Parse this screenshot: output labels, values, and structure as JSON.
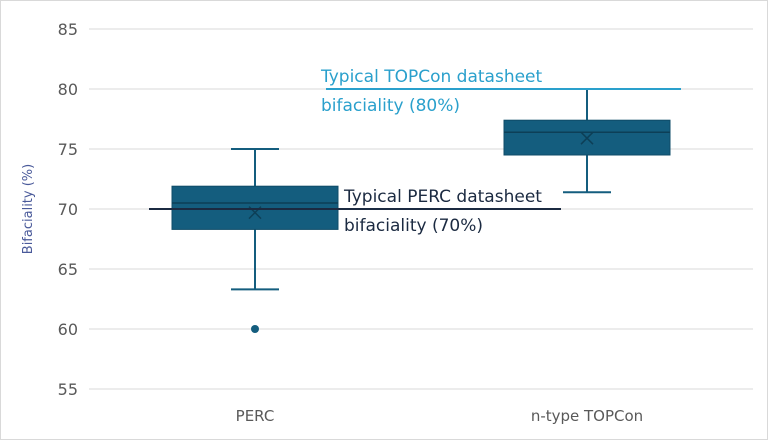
{
  "chart_data": {
    "type": "box",
    "title": "",
    "xlabel": "",
    "ylabel": "Bifaciality (%)",
    "ylim": [
      55,
      85
    ],
    "yticks": [
      55,
      60,
      65,
      70,
      75,
      80,
      85
    ],
    "grid": true,
    "categories": [
      "PERC",
      "n-type TOPCon"
    ],
    "series": [
      {
        "category": "PERC",
        "whisker_low": 63.3,
        "q1": 68.3,
        "median": 70.5,
        "mean": 69.7,
        "q3": 71.9,
        "whisker_high": 75,
        "outliers": [
          60
        ]
      },
      {
        "category": "n-type TOPCon",
        "whisker_low": 71.4,
        "q1": 74.5,
        "median": 76.4,
        "mean": 75.9,
        "q3": 77.4,
        "whisker_high": 80,
        "outliers": []
      }
    ],
    "reference_lines": [
      {
        "value": 70,
        "label_line1": "Typical PERC datasheet",
        "label_line2": "bifaciality (70%)",
        "color": "#1b2a41"
      },
      {
        "value": 80,
        "label_line1": "Typical TOPCon datasheet",
        "label_line2": "bifaciality (80%)",
        "color": "#2aa0cc"
      }
    ],
    "box_color": "#145d7e"
  }
}
